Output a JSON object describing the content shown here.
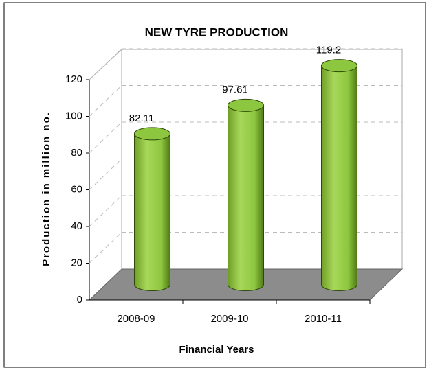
{
  "chart_data": {
    "type": "bar",
    "title": "NEW TYRE PRODUCTION",
    "x_label": "Financial Years",
    "y_label": "Production in million no.",
    "categories": [
      "2008-09",
      "2009-10",
      "2010-11"
    ],
    "values": [
      82.11,
      97.61,
      119.2
    ],
    "color": "#8dc63f",
    "ylim": [
      0,
      120
    ],
    "yticks": [
      0,
      20,
      40,
      60,
      80,
      100,
      120
    ],
    "grid": true
  }
}
